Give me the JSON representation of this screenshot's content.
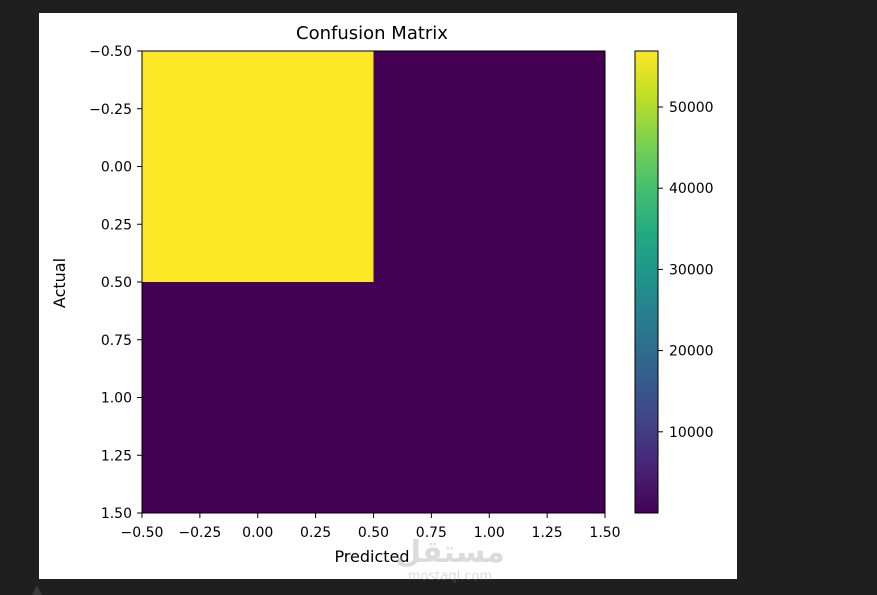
{
  "chart_data": {
    "type": "heatmap",
    "title": "Confusion Matrix",
    "xlabel": "Predicted",
    "ylabel": "Actual",
    "xlim": [
      -0.5,
      1.5
    ],
    "ylim": [
      1.5,
      -0.5
    ],
    "x_ticks": [
      "−0.50",
      "−0.25",
      "0.00",
      "0.25",
      "0.50",
      "0.75",
      "1.00",
      "1.25",
      "1.50"
    ],
    "y_ticks": [
      "−0.50",
      "−0.25",
      "0.00",
      "0.25",
      "0.50",
      "0.75",
      "1.00",
      "1.25",
      "1.50"
    ],
    "matrix": [
      [
        56900,
        0
      ],
      [
        0,
        0
      ]
    ],
    "colorbar": {
      "colormap": "viridis",
      "range": [
        0,
        56900
      ],
      "ticks": [
        "10000",
        "20000",
        "30000",
        "40000",
        "50000"
      ],
      "tick_values": [
        10000,
        20000,
        30000,
        40000,
        50000
      ]
    },
    "colors": {
      "high": "#fde725",
      "low": "#440154"
    }
  },
  "watermark": {
    "logo_text": "مستقل",
    "domain_text": "mostaql.com"
  }
}
